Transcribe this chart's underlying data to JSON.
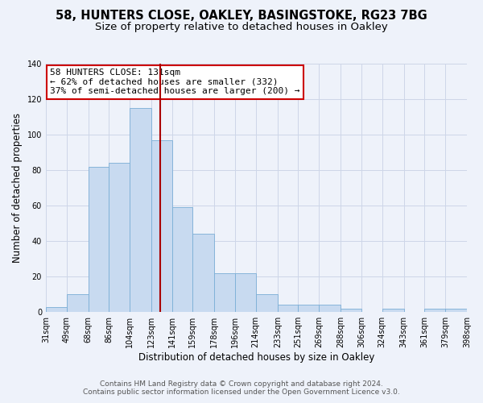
{
  "title_line1": "58, HUNTERS CLOSE, OAKLEY, BASINGSTOKE, RG23 7BG",
  "title_line2": "Size of property relative to detached houses in Oakley",
  "xlabel": "Distribution of detached houses by size in Oakley",
  "ylabel": "Number of detached properties",
  "annotation_line1": "58 HUNTERS CLOSE: 131sqm",
  "annotation_line2": "← 62% of detached houses are smaller (332)",
  "annotation_line3": "37% of semi-detached houses are larger (200) →",
  "bar_color": "#c8daf0",
  "bar_edge_color": "#7aaed6",
  "vline_color": "#aa0000",
  "vline_x": 131,
  "bin_edges": [
    31,
    49,
    68,
    86,
    104,
    123,
    141,
    159,
    178,
    196,
    214,
    233,
    251,
    269,
    288,
    306,
    324,
    343,
    361,
    379,
    398
  ],
  "bar_heights": [
    3,
    10,
    82,
    84,
    115,
    97,
    59,
    44,
    22,
    22,
    10,
    4,
    4,
    4,
    2,
    0,
    2,
    0,
    2,
    2
  ],
  "ylim": [
    0,
    140
  ],
  "yticks": [
    0,
    20,
    40,
    60,
    80,
    100,
    120,
    140
  ],
  "footer_line1": "Contains HM Land Registry data © Crown copyright and database right 2024.",
  "footer_line2": "Contains public sector information licensed under the Open Government Licence v3.0.",
  "bg_color": "#eef2fa",
  "plot_bg_color": "#eef2fa",
  "grid_color": "#cdd6e8",
  "annotation_box_edge": "#cc0000",
  "title_fontsize": 10.5,
  "subtitle_fontsize": 9.5,
  "axis_label_fontsize": 8.5,
  "tick_label_fontsize": 7,
  "annotation_fontsize": 8,
  "footer_fontsize": 6.5
}
